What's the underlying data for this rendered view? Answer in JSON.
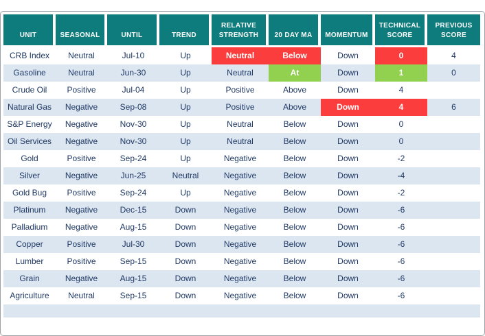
{
  "chart_data": {
    "type": "table",
    "title": "",
    "columns": [
      {
        "key": "unit",
        "label": "UNIT"
      },
      {
        "key": "seasonal",
        "label": "SEASONAL"
      },
      {
        "key": "until",
        "label": "UNTIL"
      },
      {
        "key": "trend",
        "label": "TREND"
      },
      {
        "key": "relative_strength",
        "label": "RELATIVE STRENGTH"
      },
      {
        "key": "ma_20_day",
        "label": "20 DAY MA"
      },
      {
        "key": "momentum",
        "label": "MOMENTUM"
      },
      {
        "key": "technical_score",
        "label": "TECHNICAL SCORE"
      },
      {
        "key": "previous_score",
        "label": "PREVIOUS SCORE"
      }
    ],
    "rows": [
      [
        "CRB Index",
        "Neutral",
        "Jul-10",
        "Up",
        "Neutral",
        "Below",
        "Down",
        "0",
        "4"
      ],
      [
        "Gasoline",
        "Neutral",
        "Jun-30",
        "Up",
        "Neutral",
        "At",
        "Down",
        "1",
        "0"
      ],
      [
        "Crude Oil",
        "Positive",
        "Jul-04",
        "Up",
        "Positive",
        "Above",
        "Down",
        "4",
        ""
      ],
      [
        "Natural Gas",
        "Negative",
        "Sep-08",
        "Up",
        "Positive",
        "Above",
        "Down",
        "4",
        "6"
      ],
      [
        "S&P Energy",
        "Negative",
        "Nov-30",
        "Up",
        "Neutral",
        "Below",
        "Down",
        "0",
        ""
      ],
      [
        "Oil Services",
        "Negative",
        "Nov-30",
        "Up",
        "Neutral",
        "Below",
        "Down",
        "0",
        ""
      ],
      [
        "Gold",
        "Positive",
        "Sep-24",
        "Up",
        "Negative",
        "Below",
        "Down",
        "-2",
        ""
      ],
      [
        "Silver",
        "Negative",
        "Jun-25",
        "Neutral",
        "Negative",
        "Below",
        "Down",
        "-4",
        ""
      ],
      [
        "Gold Bug",
        "Positive",
        "Sep-24",
        "Up",
        "Negative",
        "Below",
        "Down",
        "-2",
        ""
      ],
      [
        "Platinum",
        "Negative",
        "Dec-15",
        "Down",
        "Negative",
        "Below",
        "Down",
        "-6",
        ""
      ],
      [
        "Palladium",
        "Negative",
        "Aug-15",
        "Down",
        "Negative",
        "Below",
        "Down",
        "-6",
        ""
      ],
      [
        "Copper",
        "Positive",
        "Jul-30",
        "Down",
        "Negative",
        "Below",
        "Down",
        "-6",
        ""
      ],
      [
        "Lumber",
        "Positive",
        "Sep-15",
        "Down",
        "Negative",
        "Below",
        "Down",
        "-6",
        ""
      ],
      [
        "Grain",
        "Negative",
        "Aug-15",
        "Down",
        "Negative",
        "Below",
        "Down",
        "-6",
        ""
      ],
      [
        "Agriculture",
        "Neutral",
        "Sep-15",
        "Down",
        "Negative",
        "Below",
        "Down",
        "-6",
        ""
      ]
    ],
    "highlighted_cells": [
      {
        "row": 0,
        "col": 4,
        "color": "red"
      },
      {
        "row": 0,
        "col": 5,
        "color": "red"
      },
      {
        "row": 0,
        "col": 7,
        "color": "red"
      },
      {
        "row": 1,
        "col": 5,
        "color": "green"
      },
      {
        "row": 1,
        "col": 7,
        "color": "green"
      },
      {
        "row": 3,
        "col": 6,
        "color": "red"
      },
      {
        "row": 3,
        "col": 7,
        "color": "red"
      }
    ],
    "colors": {
      "header_bg": "#0e7c7c",
      "header_text": "#ffffff",
      "row_bg": "#ffffff",
      "row_alt_bg": "#dce6f1",
      "text": "#1f3864",
      "highlight_red": "#fc3d3d",
      "highlight_green": "#92d050"
    },
    "layout": {
      "grid": "off",
      "striped_rows": true
    }
  }
}
